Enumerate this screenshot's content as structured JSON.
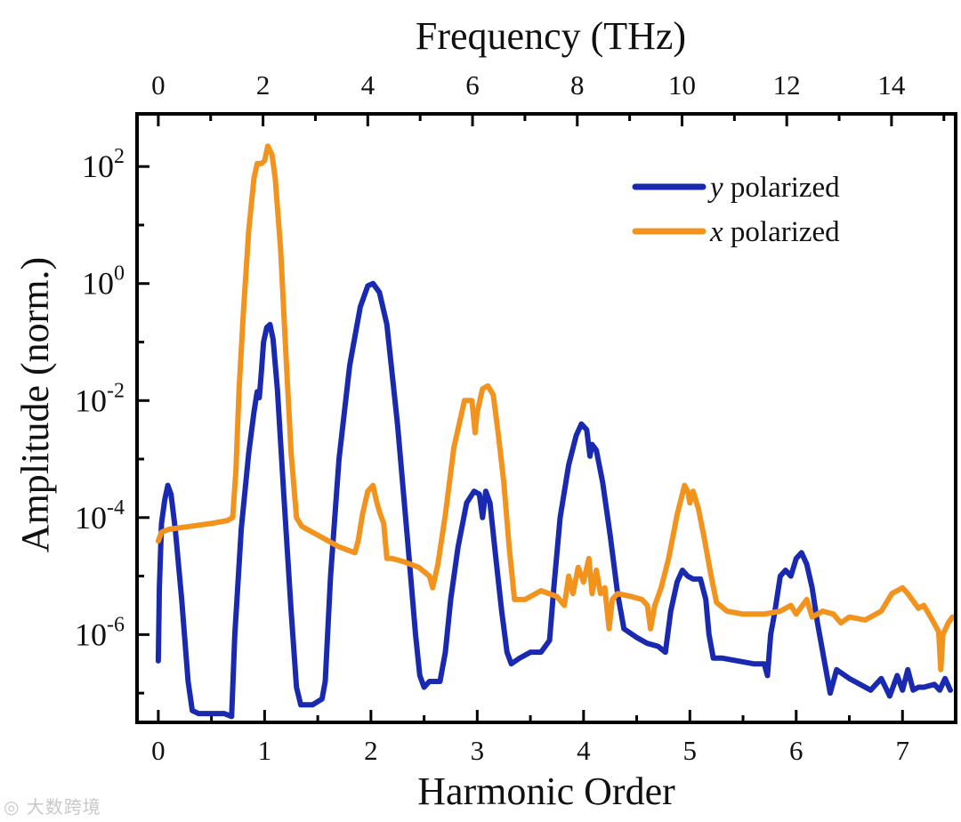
{
  "chart_data": {
    "type": "line",
    "y_scale": "log",
    "title": "",
    "xlabel": "Harmonic Order",
    "x2label": "Frequency (THz)",
    "ylabel": "Amplitude (norm.)",
    "xlim": [
      -0.2,
      7.5
    ],
    "ylim_log10": [
      -7.5,
      2.9
    ],
    "x_ticks": [
      "0",
      "1",
      "2",
      "3",
      "4",
      "5",
      "6",
      "7"
    ],
    "x2_ticks": [
      "0",
      "2",
      "4",
      "6",
      "8",
      "10",
      "12",
      "14"
    ],
    "x2_per_x": 2.03,
    "y_ticks": [
      {
        "base": "10",
        "exp": "2"
      },
      {
        "base": "10",
        "exp": "0"
      },
      {
        "base": "10",
        "exp": "-2"
      },
      {
        "base": "10",
        "exp": "-4"
      },
      {
        "base": "10",
        "exp": "-6"
      }
    ],
    "legend_position": "top-right",
    "series": [
      {
        "var": "y",
        "name": " polarized",
        "color": "#1a2ab0",
        "points": [
          [
            0.0,
            -6.45
          ],
          [
            0.01,
            -5.2
          ],
          [
            0.03,
            -4.1
          ],
          [
            0.06,
            -3.7
          ],
          [
            0.09,
            -3.45
          ],
          [
            0.12,
            -3.6
          ],
          [
            0.16,
            -4.2
          ],
          [
            0.22,
            -5.4
          ],
          [
            0.28,
            -6.8
          ],
          [
            0.32,
            -7.3
          ],
          [
            0.38,
            -7.35
          ],
          [
            0.5,
            -7.35
          ],
          [
            0.62,
            -7.35
          ],
          [
            0.69,
            -7.4
          ],
          [
            0.72,
            -6.0
          ],
          [
            0.78,
            -4.2
          ],
          [
            0.85,
            -2.9
          ],
          [
            0.9,
            -2.2
          ],
          [
            0.93,
            -1.85
          ],
          [
            0.95,
            -1.95
          ],
          [
            0.97,
            -1.5
          ],
          [
            0.99,
            -1.0
          ],
          [
            1.02,
            -0.75
          ],
          [
            1.05,
            -0.7
          ],
          [
            1.08,
            -0.95
          ],
          [
            1.12,
            -1.8
          ],
          [
            1.18,
            -3.6
          ],
          [
            1.25,
            -5.6
          ],
          [
            1.3,
            -6.9
          ],
          [
            1.34,
            -7.2
          ],
          [
            1.45,
            -7.2
          ],
          [
            1.54,
            -7.1
          ],
          [
            1.57,
            -6.8
          ],
          [
            1.62,
            -5.0
          ],
          [
            1.7,
            -3.0
          ],
          [
            1.8,
            -1.4
          ],
          [
            1.9,
            -0.4
          ],
          [
            1.97,
            -0.04
          ],
          [
            2.02,
            0.0
          ],
          [
            2.08,
            -0.15
          ],
          [
            2.15,
            -0.7
          ],
          [
            2.25,
            -2.4
          ],
          [
            2.35,
            -4.5
          ],
          [
            2.42,
            -6.0
          ],
          [
            2.46,
            -6.7
          ],
          [
            2.5,
            -6.9
          ],
          [
            2.55,
            -6.8
          ],
          [
            2.65,
            -6.8
          ],
          [
            2.7,
            -6.3
          ],
          [
            2.75,
            -5.4
          ],
          [
            2.82,
            -4.5
          ],
          [
            2.9,
            -3.75
          ],
          [
            2.97,
            -3.55
          ],
          [
            3.02,
            -3.6
          ],
          [
            3.05,
            -4.0
          ],
          [
            3.08,
            -3.55
          ],
          [
            3.12,
            -3.75
          ],
          [
            3.17,
            -4.6
          ],
          [
            3.23,
            -5.6
          ],
          [
            3.28,
            -6.3
          ],
          [
            3.32,
            -6.5
          ],
          [
            3.4,
            -6.4
          ],
          [
            3.5,
            -6.3
          ],
          [
            3.6,
            -6.3
          ],
          [
            3.68,
            -6.1
          ],
          [
            3.72,
            -5.2
          ],
          [
            3.78,
            -4.0
          ],
          [
            3.86,
            -3.1
          ],
          [
            3.93,
            -2.6
          ],
          [
            3.98,
            -2.4
          ],
          [
            4.03,
            -2.5
          ],
          [
            4.06,
            -2.95
          ],
          [
            4.08,
            -2.75
          ],
          [
            4.12,
            -2.85
          ],
          [
            4.18,
            -3.4
          ],
          [
            4.25,
            -4.3
          ],
          [
            4.32,
            -5.3
          ],
          [
            4.38,
            -5.9
          ],
          [
            4.5,
            -6.05
          ],
          [
            4.6,
            -6.15
          ],
          [
            4.7,
            -6.2
          ],
          [
            4.77,
            -6.3
          ],
          [
            4.82,
            -5.6
          ],
          [
            4.88,
            -5.1
          ],
          [
            4.93,
            -4.9
          ],
          [
            4.98,
            -5.0
          ],
          [
            5.03,
            -5.05
          ],
          [
            5.1,
            -5.05
          ],
          [
            5.15,
            -5.4
          ],
          [
            5.18,
            -6.0
          ],
          [
            5.22,
            -6.4
          ],
          [
            5.3,
            -6.4
          ],
          [
            5.45,
            -6.45
          ],
          [
            5.6,
            -6.5
          ],
          [
            5.7,
            -6.5
          ],
          [
            5.73,
            -6.7
          ],
          [
            5.76,
            -6.0
          ],
          [
            5.8,
            -5.6
          ],
          [
            5.85,
            -5.0
          ],
          [
            5.9,
            -4.9
          ],
          [
            5.95,
            -5.0
          ],
          [
            6.0,
            -4.7
          ],
          [
            6.05,
            -4.6
          ],
          [
            6.1,
            -4.8
          ],
          [
            6.15,
            -5.2
          ],
          [
            6.2,
            -5.8
          ],
          [
            6.27,
            -6.5
          ],
          [
            6.32,
            -7.0
          ],
          [
            6.38,
            -6.6
          ],
          [
            6.5,
            -6.75
          ],
          [
            6.6,
            -6.85
          ],
          [
            6.7,
            -6.95
          ],
          [
            6.8,
            -6.75
          ],
          [
            6.88,
            -7.05
          ],
          [
            6.95,
            -6.7
          ],
          [
            7.0,
            -6.95
          ],
          [
            7.05,
            -6.6
          ],
          [
            7.1,
            -6.95
          ],
          [
            7.15,
            -6.9
          ],
          [
            7.2,
            -6.9
          ],
          [
            7.3,
            -6.85
          ],
          [
            7.35,
            -6.95
          ],
          [
            7.4,
            -6.75
          ],
          [
            7.45,
            -6.95
          ]
        ]
      },
      {
        "var": "x",
        "name": " polarized",
        "color": "#f2931e",
        "points": [
          [
            0.0,
            -4.4
          ],
          [
            0.03,
            -4.25
          ],
          [
            0.1,
            -4.2
          ],
          [
            0.3,
            -4.15
          ],
          [
            0.5,
            -4.1
          ],
          [
            0.65,
            -4.05
          ],
          [
            0.7,
            -4.0
          ],
          [
            0.73,
            -3.2
          ],
          [
            0.76,
            -1.8
          ],
          [
            0.8,
            -0.5
          ],
          [
            0.85,
            0.9
          ],
          [
            0.9,
            1.8
          ],
          [
            0.93,
            2.05
          ],
          [
            0.97,
            2.05
          ],
          [
            1.0,
            2.1
          ],
          [
            1.03,
            2.35
          ],
          [
            1.07,
            2.2
          ],
          [
            1.1,
            1.8
          ],
          [
            1.15,
            0.6
          ],
          [
            1.2,
            -1.2
          ],
          [
            1.25,
            -2.9
          ],
          [
            1.3,
            -4.0
          ],
          [
            1.35,
            -4.15
          ],
          [
            1.5,
            -4.3
          ],
          [
            1.7,
            -4.5
          ],
          [
            1.85,
            -4.6
          ],
          [
            1.88,
            -4.4
          ],
          [
            1.92,
            -3.95
          ],
          [
            1.97,
            -3.55
          ],
          [
            2.02,
            -3.45
          ],
          [
            2.05,
            -3.7
          ],
          [
            2.08,
            -3.9
          ],
          [
            2.12,
            -4.1
          ],
          [
            2.15,
            -4.7
          ],
          [
            2.2,
            -4.7
          ],
          [
            2.3,
            -4.75
          ],
          [
            2.45,
            -4.85
          ],
          [
            2.55,
            -5.0
          ],
          [
            2.58,
            -5.2
          ],
          [
            2.63,
            -4.8
          ],
          [
            2.7,
            -3.95
          ],
          [
            2.78,
            -2.8
          ],
          [
            2.88,
            -2.0
          ],
          [
            2.95,
            -2.0
          ],
          [
            2.98,
            -2.55
          ],
          [
            3.0,
            -2.2
          ],
          [
            3.05,
            -1.8
          ],
          [
            3.1,
            -1.75
          ],
          [
            3.15,
            -1.9
          ],
          [
            3.2,
            -2.6
          ],
          [
            3.25,
            -3.4
          ],
          [
            3.3,
            -4.5
          ],
          [
            3.35,
            -5.4
          ],
          [
            3.45,
            -5.4
          ],
          [
            3.6,
            -5.25
          ],
          [
            3.75,
            -5.35
          ],
          [
            3.82,
            -5.5
          ],
          [
            3.86,
            -5.0
          ],
          [
            3.9,
            -5.3
          ],
          [
            3.95,
            -4.85
          ],
          [
            4.0,
            -5.1
          ],
          [
            4.05,
            -4.7
          ],
          [
            4.08,
            -5.3
          ],
          [
            4.12,
            -4.9
          ],
          [
            4.16,
            -5.3
          ],
          [
            4.2,
            -5.2
          ],
          [
            4.24,
            -5.9
          ],
          [
            4.27,
            -5.4
          ],
          [
            4.32,
            -5.3
          ],
          [
            4.45,
            -5.35
          ],
          [
            4.55,
            -5.4
          ],
          [
            4.6,
            -5.5
          ],
          [
            4.63,
            -5.9
          ],
          [
            4.67,
            -5.5
          ],
          [
            4.73,
            -5.2
          ],
          [
            4.8,
            -4.7
          ],
          [
            4.88,
            -3.95
          ],
          [
            4.95,
            -3.45
          ],
          [
            4.98,
            -3.55
          ],
          [
            5.0,
            -3.75
          ],
          [
            5.03,
            -3.55
          ],
          [
            5.08,
            -3.85
          ],
          [
            5.13,
            -4.3
          ],
          [
            5.2,
            -5.0
          ],
          [
            5.25,
            -5.45
          ],
          [
            5.35,
            -5.6
          ],
          [
            5.5,
            -5.65
          ],
          [
            5.7,
            -5.65
          ],
          [
            5.85,
            -5.6
          ],
          [
            5.95,
            -5.5
          ],
          [
            6.0,
            -5.65
          ],
          [
            6.1,
            -5.4
          ],
          [
            6.15,
            -5.7
          ],
          [
            6.25,
            -5.6
          ],
          [
            6.35,
            -5.65
          ],
          [
            6.42,
            -5.8
          ],
          [
            6.5,
            -5.7
          ],
          [
            6.65,
            -5.75
          ],
          [
            6.8,
            -5.6
          ],
          [
            6.9,
            -5.3
          ],
          [
            6.95,
            -5.25
          ],
          [
            7.0,
            -5.2
          ],
          [
            7.05,
            -5.3
          ],
          [
            7.15,
            -5.55
          ],
          [
            7.2,
            -5.5
          ],
          [
            7.28,
            -5.75
          ],
          [
            7.34,
            -5.95
          ],
          [
            7.36,
            -6.6
          ],
          [
            7.38,
            -6.0
          ],
          [
            7.43,
            -5.8
          ],
          [
            7.47,
            -5.7
          ]
        ]
      }
    ]
  }
}
